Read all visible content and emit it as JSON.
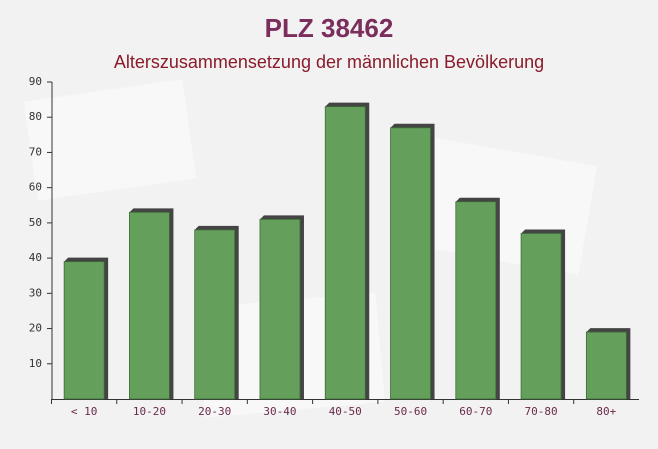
{
  "chart_data": {
    "type": "bar",
    "title": "PLZ 38462",
    "subtitle": "Alterszusammensetzung der männlichen Bevölkerung",
    "categories": [
      "< 10",
      "10-20",
      "20-30",
      "30-40",
      "40-50",
      "50-60",
      "60-70",
      "70-80",
      "80+"
    ],
    "values": [
      39,
      53,
      48,
      51,
      83,
      77,
      56,
      47,
      19
    ],
    "color": "#64a05c",
    "ylim": [
      0,
      90
    ],
    "yticks": [
      10,
      20,
      30,
      40,
      50,
      60,
      70,
      80,
      90
    ],
    "grid": false
  }
}
